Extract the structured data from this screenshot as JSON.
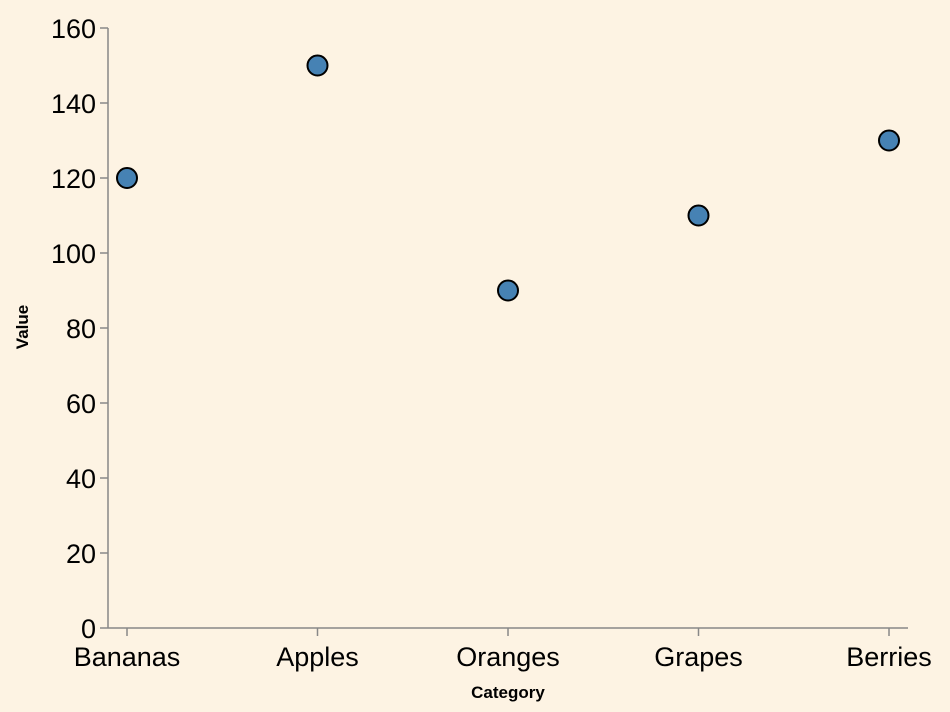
{
  "colors": {
    "background": "#fdf3e3",
    "point_fill": "#4682b4",
    "point_stroke": "#000000",
    "axis": "#888888"
  },
  "chart_data": {
    "type": "scatter",
    "title": "",
    "xlabel": "Category",
    "ylabel": "Value",
    "categories": [
      "Bananas",
      "Apples",
      "Oranges",
      "Grapes",
      "Berries"
    ],
    "values": [
      120,
      150,
      90,
      110,
      130
    ],
    "ylim": [
      0,
      160
    ],
    "yticks": [
      0,
      20,
      40,
      60,
      80,
      100,
      120,
      140,
      160
    ],
    "grid": false,
    "legend": "none"
  }
}
